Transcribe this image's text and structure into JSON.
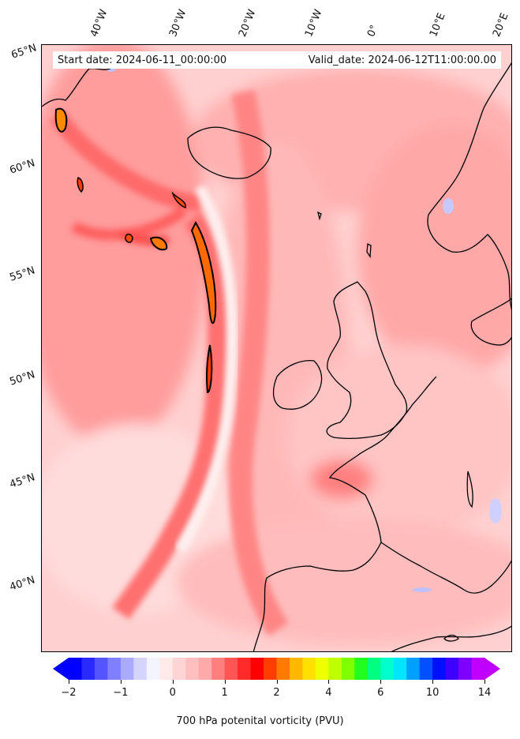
{
  "header": {
    "start_date": "Start date: 2024-06-11_00:00:00",
    "valid_date": "Valid_date: 2024-06-12T11:00:00.00"
  },
  "longitude_labels": [
    "40°W",
    "30°W",
    "20°W",
    "10°W",
    "0°",
    "10°E",
    "20°E"
  ],
  "latitude_labels": [
    "65°N",
    "60°N",
    "55°N",
    "50°N",
    "45°N",
    "40°N"
  ],
  "colorbar": {
    "label": "700 hPa potenital vorticity (PVU)",
    "ticks": [
      "−2",
      "−1",
      "0",
      "1",
      "2",
      "4",
      "6",
      "10",
      "14"
    ],
    "colors": [
      "#0000ff",
      "#2a2aff",
      "#5555ff",
      "#7f7fff",
      "#aaaaff",
      "#d4d4ff",
      "#f4f4ff",
      "#ffeaea",
      "#ffd4d4",
      "#ffbfbf",
      "#ffaaaa",
      "#ff7f7f",
      "#ff5555",
      "#ff2a2a",
      "#ff0000",
      "#ff3d00",
      "#ff7a00",
      "#ffb700",
      "#ffe000",
      "#f0ff00",
      "#c0ff00",
      "#80ff00",
      "#20ff20",
      "#00ff80",
      "#00ffcc",
      "#00e6ff",
      "#00a0ff",
      "#0050ff",
      "#0010ff",
      "#4000ff",
      "#8000ff",
      "#c000ff"
    ],
    "under_color": "#0000ff",
    "over_color": "#c000ff"
  }
}
